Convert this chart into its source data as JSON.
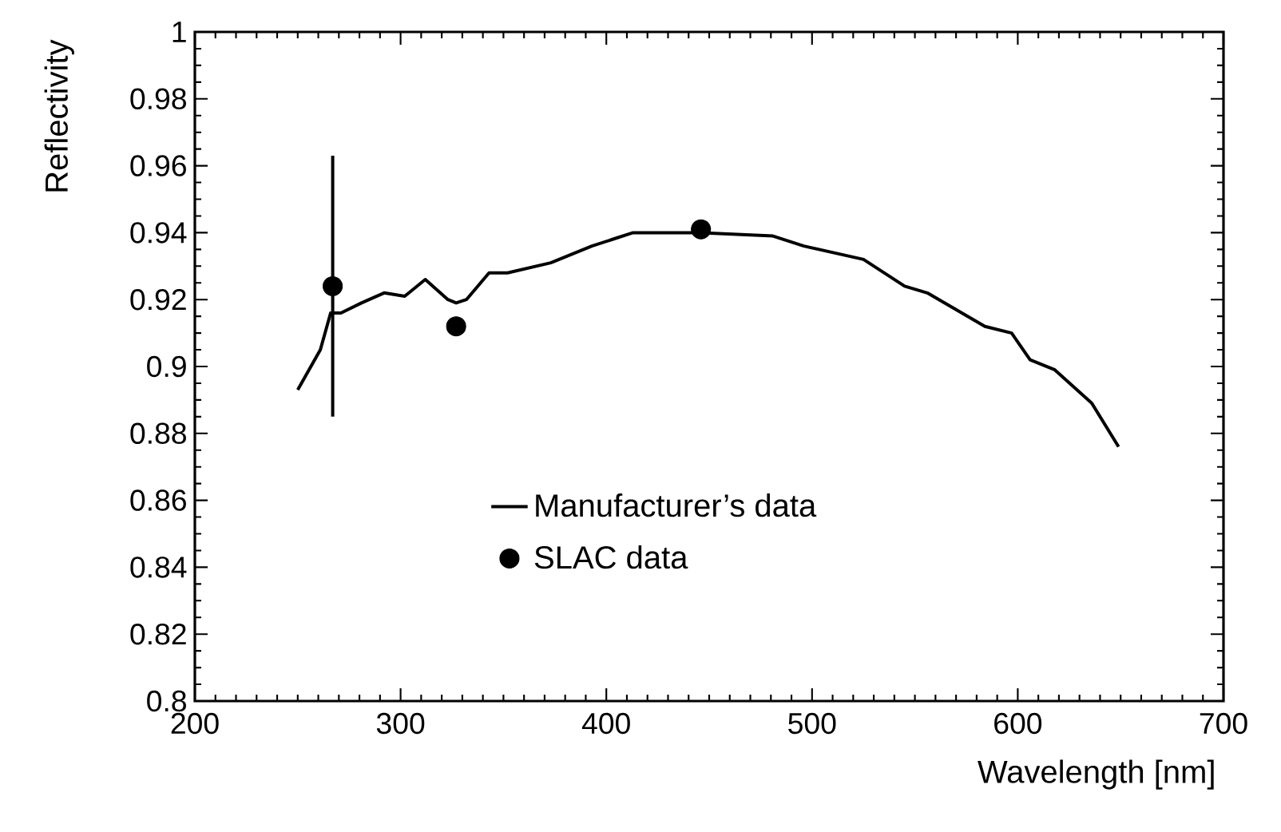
{
  "chart_data": {
    "type": "line",
    "xlabel": "Wavelength [nm]",
    "ylabel": "Reflectivity",
    "xlim": [
      200,
      700
    ],
    "xticks": [
      200,
      300,
      400,
      500,
      600,
      700
    ],
    "ylim": [
      0.8,
      1
    ],
    "yticks": [
      0.8,
      0.82,
      0.84,
      0.86,
      0.88,
      0.9,
      0.92,
      0.94,
      0.96,
      0.98,
      1
    ],
    "grid": false,
    "legend": "bottom",
    "series": [
      {
        "name": "Manufacturer’s data",
        "color": "#000000",
        "marker": "none",
        "x": [
          250,
          261,
          266,
          271,
          281,
          292,
          302,
          312,
          323,
          327,
          332,
          343,
          352,
          373,
          393,
          403,
          413,
          446,
          481,
          496,
          525,
          545,
          556,
          584,
          597,
          606,
          618,
          636,
          649
        ],
        "values": [
          0.893,
          0.905,
          0.916,
          0.916,
          0.919,
          0.922,
          0.921,
          0.926,
          0.92,
          0.919,
          0.92,
          0.928,
          0.928,
          0.931,
          0.936,
          0.938,
          0.94,
          0.94,
          0.939,
          0.936,
          0.932,
          0.924,
          0.922,
          0.912,
          0.91,
          0.902,
          0.899,
          0.889,
          0.876
        ]
      },
      {
        "name": "SLAC data",
        "type": "scatter",
        "color": "#000000",
        "marker": "circle",
        "x": [
          267,
          327,
          446
        ],
        "values": [
          0.924,
          0.912,
          0.941
        ],
        "errors": [
          [
            0.885,
            0.963
          ],
          0.002,
          null
        ]
      }
    ]
  }
}
